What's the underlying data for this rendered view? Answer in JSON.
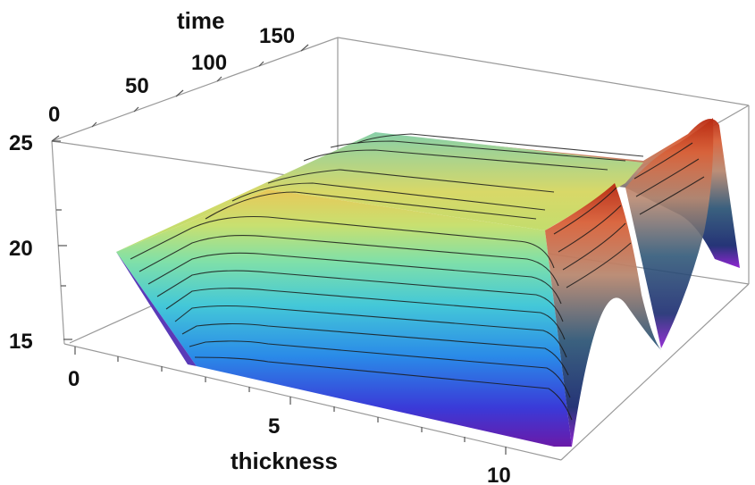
{
  "chart_data": {
    "type": "surface3d",
    "title": "",
    "xlabel": "thickness",
    "ylabel": "time",
    "zlabel": "",
    "xlim": [
      0,
      11
    ],
    "ylim": [
      0,
      180
    ],
    "zlim": [
      14.6,
      25
    ],
    "x_ticks": [
      "0",
      "5",
      "10"
    ],
    "y_ticks": [
      "0",
      "50",
      "100",
      "150"
    ],
    "z_ticks": [
      "15",
      "20",
      "25"
    ],
    "colormap": [
      "#5a1aa0",
      "#3a4ad8",
      "#2aa0e0",
      "#5de0c0",
      "#b8e878",
      "#e8d060",
      "#e07030",
      "#c02818"
    ],
    "contour_lines": true,
    "profile": {
      "description_points_x": [
        1,
        3,
        8.2,
        9.3,
        10.4,
        11
      ],
      "plateau_value": 24.3,
      "base_value": 14.6
    }
  }
}
